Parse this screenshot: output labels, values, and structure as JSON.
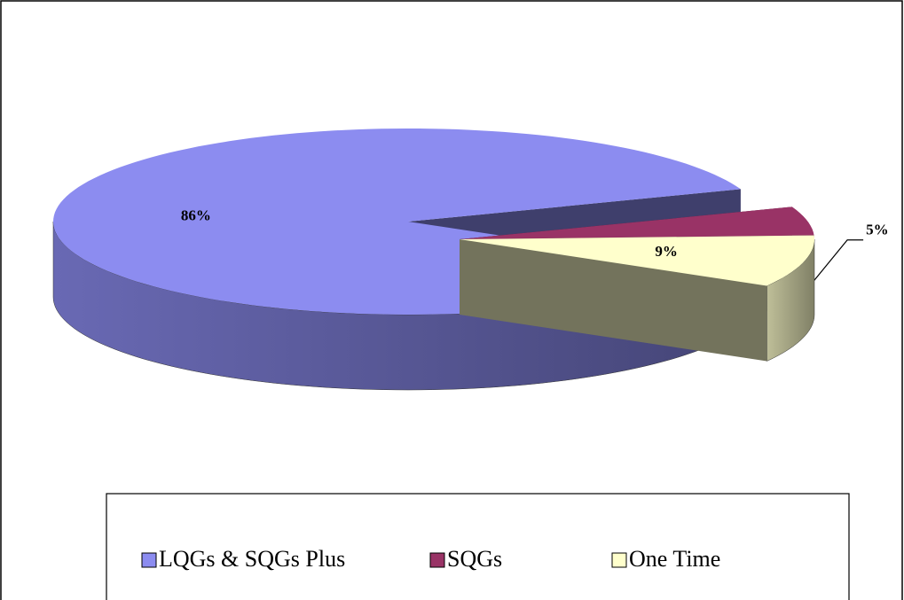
{
  "chart_data": {
    "type": "pie",
    "categories": [
      "LQGs & SQGs Plus",
      "SQGs",
      "One Time"
    ],
    "values": [
      86,
      5,
      9
    ],
    "value_labels": [
      "86%",
      "5%",
      "9%"
    ],
    "colors": [
      "#8c8cf0",
      "#993366",
      "#ffffcc"
    ],
    "legend": "bottom"
  }
}
